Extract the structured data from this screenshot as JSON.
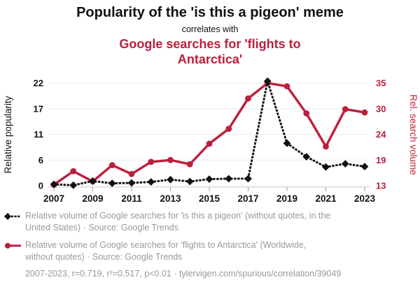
{
  "header": {
    "title": "Popularity of the 'is this a pigeon' meme",
    "connector": "correlates with",
    "red_title": "Google searches for 'flights to Antarctica'"
  },
  "colors": {
    "accent_red": "#bc1f3c",
    "series_black": "#111111",
    "legend_gray": "#999999",
    "gridline": "#ececec",
    "axis_line": "#cccccc",
    "tick_mark": "#999999"
  },
  "chart_data": {
    "type": "line",
    "title": "Popularity of the 'is this a pigeon' meme correlates with Google searches for 'flights to Antarctica'",
    "x": [
      2007,
      2008,
      2009,
      2010,
      2011,
      2012,
      2013,
      2014,
      2015,
      2016,
      2017,
      2018,
      2019,
      2020,
      2021,
      2022,
      2023
    ],
    "x_tick_labels": [
      "2007",
      "2009",
      "2011",
      "2013",
      "2015",
      "2017",
      "2019",
      "2021",
      "2023"
    ],
    "grid": true,
    "legend_position": "bottom",
    "left_axis": {
      "label": "Relative popularity",
      "range": [
        0,
        22
      ],
      "ticks": [
        0,
        5.5,
        11,
        16.5,
        22
      ],
      "tick_labels": [
        "0",
        "6",
        "11",
        "17",
        "22"
      ],
      "color": "#111111"
    },
    "right_axis": {
      "label": "Rel. search volume",
      "range": [
        13,
        35
      ],
      "ticks": [
        13,
        18.5,
        24,
        29.5,
        35
      ],
      "tick_labels": [
        "13",
        "19",
        "24",
        "30",
        "35"
      ],
      "color": "#bc1f3c"
    },
    "series": [
      {
        "name": "is this a pigeon",
        "axis": "right",
        "color": "#bc1f3c",
        "marker": "circle",
        "line_style": "solid",
        "values": [
          13.2,
          16.1,
          13.9,
          17.4,
          15.5,
          18.1,
          18.5,
          17.6,
          22.0,
          25.2,
          31.7,
          35.0,
          34.3,
          28.5,
          21.4,
          29.4,
          28.7
        ]
      },
      {
        "name": "flights to Antarctica",
        "axis": "left",
        "color": "#111111",
        "marker": "diamond",
        "line_style": "dotted",
        "values": [
          0.3,
          0.1,
          1.0,
          0.5,
          0.6,
          0.8,
          1.3,
          0.9,
          1.4,
          1.5,
          1.5,
          22.4,
          9.1,
          6.2,
          4.0,
          4.7,
          4.1
        ]
      }
    ]
  },
  "legend": [
    {
      "label": "Relative volume of Google searches for 'is this a pigeon' (without quotes, in the United States) · Source: Google Trends"
    },
    {
      "label": "Relative volume of Google searches for 'flights to Antarctica' (Worldwide, without quotes) · Source: Google Trends"
    }
  ],
  "footer": {
    "stats": "2007-2023, r=0.719, r²=0.517, p<0.01 · tylervigen.com/spurious/correlation/39049"
  }
}
